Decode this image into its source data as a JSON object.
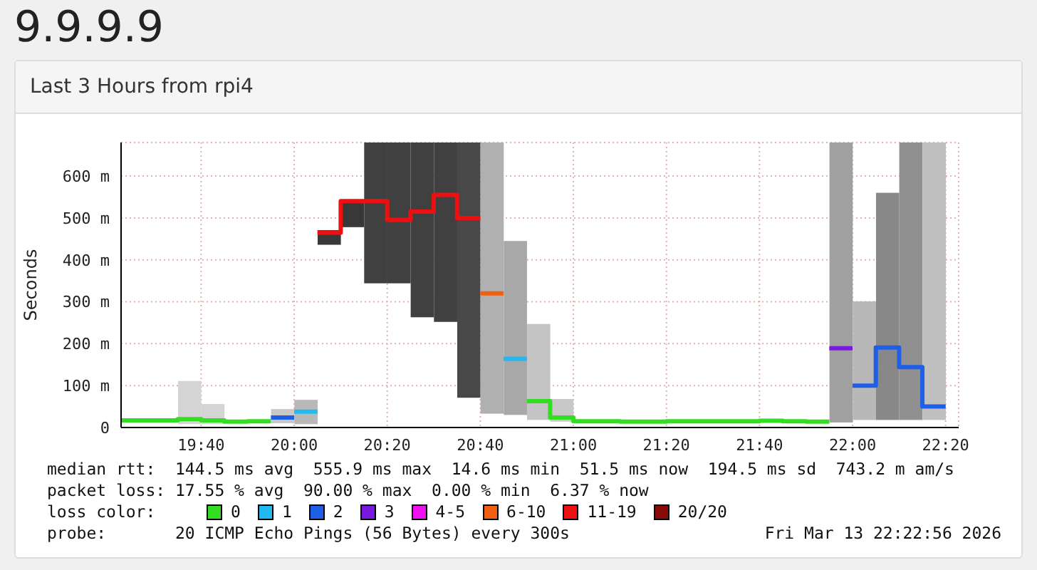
{
  "chart_data": {
    "type": "step",
    "title": "9.9.9.9",
    "subtitle": "Last 3 Hours from rpi4",
    "ylabel": "Seconds",
    "xlim": [
      19.38,
      22.38
    ],
    "xticks": [
      {
        "value": 19.6667,
        "label": "19:40"
      },
      {
        "value": 20,
        "label": "20:00"
      },
      {
        "value": 20.3333,
        "label": "20:20"
      },
      {
        "value": 20.6667,
        "label": "20:40"
      },
      {
        "value": 21,
        "label": "21:00"
      },
      {
        "value": 21.3333,
        "label": "21:20"
      },
      {
        "value": 21.6667,
        "label": "21:40"
      },
      {
        "value": 22,
        "label": "22:00"
      },
      {
        "value": 22.3333,
        "label": "22:20"
      }
    ],
    "ylim": [
      0,
      680
    ],
    "yticks": [
      0,
      {
        "value": 100,
        "label": "100 m"
      },
      {
        "value": 200,
        "label": "200 m"
      },
      {
        "value": 300,
        "label": "300 m"
      },
      {
        "value": 400,
        "label": "400 m"
      },
      {
        "value": 500,
        "label": "500 m"
      },
      {
        "value": 600,
        "label": "600 m"
      }
    ],
    "grid": true,
    "legend": "bottom",
    "legend_title": "loss color:",
    "marker": "none",
    "line_style": "solid",
    "series": [
      {
        "type": "bar",
        "x": [
          19.625,
          19.7083,
          19.9583,
          20.0417,
          20.125,
          20.2083,
          20.2917,
          20.375,
          20.4583,
          20.5417,
          20.625,
          20.7083,
          20.7917,
          20.875,
          20.9583,
          21.9583,
          22.0417,
          22.125,
          22.2083,
          22.2917
        ],
        "base": [
          8,
          8,
          10,
          8,
          436,
          478,
          344,
          344,
          263,
          252,
          71,
          33,
          30,
          18,
          14,
          12,
          18,
          18,
          18,
          18
        ],
        "values": [
          103,
          48,
          34,
          58,
          35,
          66,
          336,
          336,
          417,
          428,
          609,
          647,
          415,
          229,
          54,
          668,
          283,
          542,
          662,
          662
        ],
        "colors": [
          "#d4d4d4",
          "#d4d4d4",
          "#c8c8c8",
          "#b8b8b8",
          "#383838",
          "#383838",
          "#404040",
          "#404040",
          "#404040",
          "#404040",
          "#484848",
          "#b0b0b0",
          "#a8a8a8",
          "#c4c4c4",
          "#c8c8c8",
          "#a0a0a0",
          "#b8b8b8",
          "#888888",
          "#909090",
          "#c0c0c0"
        ]
      },
      {
        "name": "0",
        "color": "#33dd22",
        "x": [
          19.38,
          19.4167,
          19.5,
          19.5833,
          19.6667,
          19.75,
          19.8333,
          19.9167,
          20.5,
          20.8333,
          20.9167,
          21.0,
          21.0833,
          21.1667,
          21.25,
          21.3333,
          21.4167,
          21.5,
          21.5833,
          21.6667,
          21.75,
          21.8333,
          21.9167
        ],
        "values": [
          17,
          17,
          17,
          20,
          17,
          14,
          15,
          15,
          null,
          63,
          24,
          15,
          15,
          14,
          14,
          15,
          15,
          15,
          15,
          16,
          15,
          14,
          14
        ]
      },
      {
        "name": "1",
        "color": "#22b8f0",
        "x": [
          20.0,
          20.0833,
          20.5,
          20.75,
          20.8333
        ],
        "values": [
          38,
          38,
          null,
          164,
          164
        ]
      },
      {
        "name": "2",
        "color": "#1f5fe8",
        "x": [
          19.9167,
          20.0,
          20.5,
          22.0,
          22.0833,
          22.1667,
          22.25,
          22.3333
        ],
        "values": [
          24,
          24,
          null,
          100,
          191,
          144,
          50,
          50
        ]
      },
      {
        "name": "3",
        "color": "#7a18e0",
        "x": [
          21.9167,
          22.0
        ],
        "values": [
          189,
          189
        ]
      },
      {
        "name": "4-5",
        "color": "#ee10ee"
      },
      {
        "name": "6-10",
        "color": "#f06010",
        "x": [
          20.6667,
          20.75
        ],
        "values": [
          320,
          320
        ]
      },
      {
        "name": "11-19",
        "color": "#ee1010",
        "x": [
          20.0833,
          20.1667,
          20.25,
          20.3333,
          20.4167,
          20.5,
          20.5833,
          20.6667
        ],
        "values": [
          465,
          540,
          540,
          495,
          515,
          555,
          500,
          500
        ]
      },
      {
        "name": "20/20",
        "color": "#8b0a0a"
      }
    ],
    "annotations": [
      "median rtt:  144.5 ms avg  555.9 ms max  14.6 ms min  51.5 ms now  194.5 ms sd  743.2 m am/s",
      "packet loss: 17.55 % avg  90.00 % max  0.00 % min  6.37 % now",
      "probe:       20 ICMP Echo Pings (56 Bytes) every 300s",
      "Fri Mar 13 22:22:56 2026"
    ]
  }
}
